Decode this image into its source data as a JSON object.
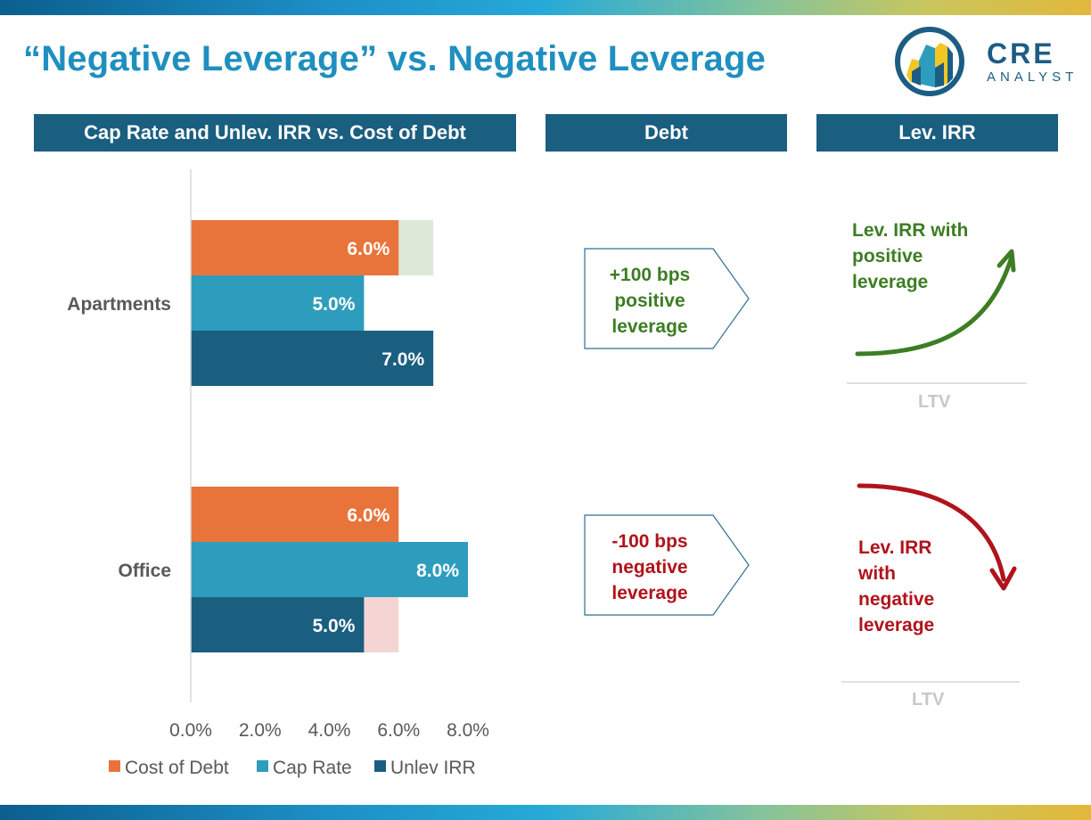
{
  "title": "“Negative Leverage” vs. Negative Leverage",
  "logo": {
    "main": "CRE",
    "sub": "ANALYST"
  },
  "headers": {
    "chart": "Cap Rate and Unlev. IRR vs. Cost of Debt",
    "debt": "Debt",
    "lev_irr": "Lev. IRR"
  },
  "colors": {
    "cost_of_debt": "#e8743b",
    "cap_rate": "#2e9dbd",
    "unlev_irr": "#1a5e80",
    "positive_spread": "#dde8d9",
    "negative_spread": "#f5d5d3",
    "positive_text": "#3d7d23",
    "negative_text": "#b0131b"
  },
  "chart_data": {
    "type": "bar",
    "orientation": "horizontal",
    "categories": [
      "Apartments",
      "Office"
    ],
    "series": [
      {
        "name": "Cost of Debt",
        "values": [
          6.0,
          6.0
        ],
        "labels": [
          "6.0%",
          "6.0%"
        ]
      },
      {
        "name": "Cap Rate",
        "values": [
          5.0,
          8.0
        ],
        "labels": [
          "5.0%",
          "8.0%"
        ]
      },
      {
        "name": "Unlev IRR",
        "values": [
          7.0,
          5.0
        ],
        "labels": [
          "7.0%",
          "5.0%"
        ]
      }
    ],
    "spread_highlights": [
      {
        "category": "Apartments",
        "from": 6.0,
        "to": 7.0,
        "kind": "positive"
      },
      {
        "category": "Office",
        "from": 5.0,
        "to": 6.0,
        "kind": "negative"
      }
    ],
    "xlim": [
      0,
      8
    ],
    "xticks": [
      "0.0%",
      "2.0%",
      "4.0%",
      "6.0%",
      "8.0%"
    ],
    "xtick_values": [
      0,
      2,
      4,
      6,
      8
    ],
    "legend_position": "bottom",
    "grid": false
  },
  "debt_column": {
    "positive": {
      "line1": "+100 bps",
      "line2": "positive",
      "line3": "leverage"
    },
    "negative": {
      "line1": "-100 bps",
      "line2": "negative",
      "line3": "leverage"
    }
  },
  "lev_irr_column": {
    "positive": {
      "line1": "Lev. IRR with",
      "line2": "positive",
      "line3": "leverage",
      "axis": "LTV"
    },
    "negative": {
      "line1": "Lev. IRR",
      "line2": "with",
      "line3": "negative",
      "line4": "leverage",
      "axis": "LTV"
    }
  }
}
